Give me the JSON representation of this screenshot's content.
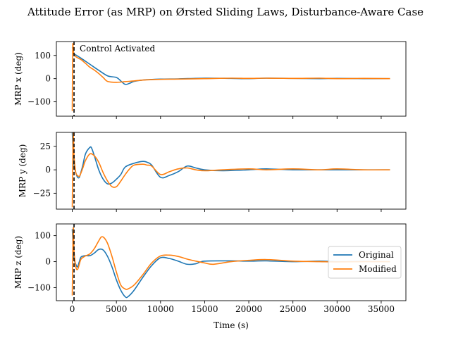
{
  "chart_data": {
    "type": "line",
    "title": "Attitude Error (as MRP) on Ørsted Sliding Laws, Disturbance-Aware Case",
    "xlabel": "Time (s)",
    "xlim": [
      -1800,
      37800
    ],
    "xticks": [
      0,
      5000,
      10000,
      15000,
      20000,
      25000,
      30000,
      35000
    ],
    "xtick_labels": [
      "0",
      "5000",
      "10000",
      "15000",
      "20000",
      "25000",
      "30000",
      "35000"
    ],
    "grid": false,
    "legend": {
      "location": "center-right of bottom panel",
      "entries": [
        "Original",
        "Modified"
      ]
    },
    "annotation": {
      "text": "Control Activated",
      "x": 200
    },
    "series_colors": {
      "Original": "#1f77b4",
      "Modified": "#ff7f0e",
      "marker_line": "#000000"
    },
    "panels": [
      {
        "ylabel": "MRP x (deg)",
        "ylim": [
          -162,
          160
        ],
        "yticks": [
          100,
          0,
          -100
        ],
        "ytick_labels": [
          "100",
          "0",
          "−100"
        ],
        "series": [
          {
            "name": "Original",
            "x": [
              0,
              100,
              200,
              500,
              1000,
              2000,
              3000,
              4000,
              5000,
              5500,
              6000,
              6500,
              7000,
              8000,
              10000,
              12000,
              15000,
              18000,
              20000,
              22000,
              25000,
              28000,
              30000,
              33000,
              36000
            ],
            "y": [
              135,
              125,
              108,
              100,
              88,
              62,
              36,
              12,
              5,
              -10,
              -25,
              -20,
              -12,
              -6,
              -2,
              -1,
              2,
              1,
              0,
              2,
              1,
              0,
              1,
              0,
              0
            ]
          },
          {
            "name": "Modified",
            "x": [
              0,
              50,
              120,
              200,
              400,
              700,
              1000,
              1500,
              2000,
              2500,
              3000,
              3500,
              4000,
              5000,
              6000,
              7000,
              8000,
              10000,
              12000,
              15000,
              18000,
              20000,
              22000,
              25000,
              28000,
              30000,
              33000,
              36000
            ],
            "y": [
              -140,
              135,
              118,
              105,
              95,
              88,
              82,
              66,
              49,
              37,
              22,
              5,
              -12,
              -16,
              -13,
              -10,
              -6,
              -3,
              -2,
              0,
              2,
              1,
              2,
              1,
              2,
              0,
              1,
              0
            ]
          }
        ]
      },
      {
        "ylabel": "MRP y (deg)",
        "ylim": [
          -42,
          40
        ],
        "yticks": [
          25,
          0,
          -25
        ],
        "ytick_labels": [
          "25",
          "0",
          "−25"
        ],
        "series": [
          {
            "name": "Original",
            "x": [
              0,
              100,
              200,
              400,
              600,
              800,
              1000,
              1200,
              1500,
              2000,
              2200,
              2500,
              3000,
              3500,
              4000,
              4500,
              5000,
              5500,
              6000,
              7000,
              8000,
              8500,
              9000,
              10000,
              11000,
              12000,
              13000,
              14000,
              15000,
              17000,
              20000,
              22000,
              25000,
              28000,
              30000,
              33000,
              36000
            ],
            "y": [
              40,
              18,
              5,
              -3,
              -8,
              -8,
              -2,
              5,
              17,
              24,
              23,
              15,
              0,
              -10,
              -15,
              -14,
              -10,
              -5,
              3,
              7,
              9,
              8,
              5,
              -8,
              -6,
              -2,
              4,
              2,
              0,
              -1,
              0,
              1,
              0,
              0,
              0,
              0,
              0
            ]
          },
          {
            "name": "Modified",
            "x": [
              0,
              100,
              200,
              400,
              600,
              800,
              1000,
              1200,
              1500,
              2000,
              2500,
              3000,
              3500,
              4000,
              4500,
              5000,
              5500,
              6000,
              6500,
              7000,
              8000,
              8500,
              9000,
              10000,
              11000,
              12000,
              13000,
              14000,
              15000,
              17000,
              20000,
              22000,
              25000,
              28000,
              30000,
              33000,
              36000
            ],
            "y": [
              -40,
              38,
              15,
              -3,
              -6,
              -7,
              -3,
              2,
              10,
              17,
              15,
              8,
              -3,
              -12,
              -18,
              -18,
              -12,
              -5,
              1,
              5,
              6,
              5,
              4,
              -5,
              -2,
              1,
              2,
              0,
              -1,
              0,
              1,
              0,
              1,
              0,
              1,
              0,
              0
            ]
          }
        ]
      },
      {
        "ylabel": "MRP z (deg)",
        "ylim": [
          -150,
          145
        ],
        "yticks": [
          100,
          0,
          -100
        ],
        "ytick_labels": [
          "100",
          "0",
          "−100"
        ],
        "series": [
          {
            "name": "Original",
            "x": [
              0,
              100,
              200,
              400,
              600,
              800,
              1000,
              1500,
              2000,
              2500,
              3000,
              3500,
              4000,
              4500,
              5000,
              5500,
              6000,
              6300,
              7000,
              8000,
              9000,
              10000,
              11000,
              12000,
              13000,
              14000,
              15000,
              18000,
              20000,
              22000,
              25000,
              28000,
              30000,
              33000,
              36000
            ],
            "y": [
              125,
              60,
              10,
              -10,
              -20,
              0,
              18,
              23,
              23,
              33,
              47,
              45,
              20,
              -20,
              -70,
              -110,
              -135,
              -135,
              -110,
              -60,
              -15,
              15,
              12,
              2,
              -10,
              -8,
              2,
              3,
              2,
              3,
              0,
              2,
              0,
              1,
              0
            ]
          },
          {
            "name": "Modified",
            "x": [
              0,
              100,
              200,
              400,
              600,
              800,
              1000,
              1500,
              2000,
              2500,
              3000,
              3300,
              3600,
              4000,
              4500,
              5000,
              5500,
              6000,
              6300,
              7000,
              8000,
              9000,
              10000,
              11000,
              12000,
              13000,
              14000,
              15000,
              16000,
              18000,
              20000,
              22000,
              25000,
              28000,
              30000,
              33000,
              36000
            ],
            "y": [
              -130,
              125,
              40,
              -20,
              -30,
              -10,
              10,
              22,
              30,
              50,
              80,
              95,
              92,
              70,
              20,
              -40,
              -90,
              -105,
              -105,
              -90,
              -50,
              -5,
              22,
              25,
              20,
              10,
              2,
              -5,
              -10,
              0,
              5,
              8,
              2,
              0,
              -1,
              0,
              0
            ]
          }
        ]
      }
    ]
  }
}
